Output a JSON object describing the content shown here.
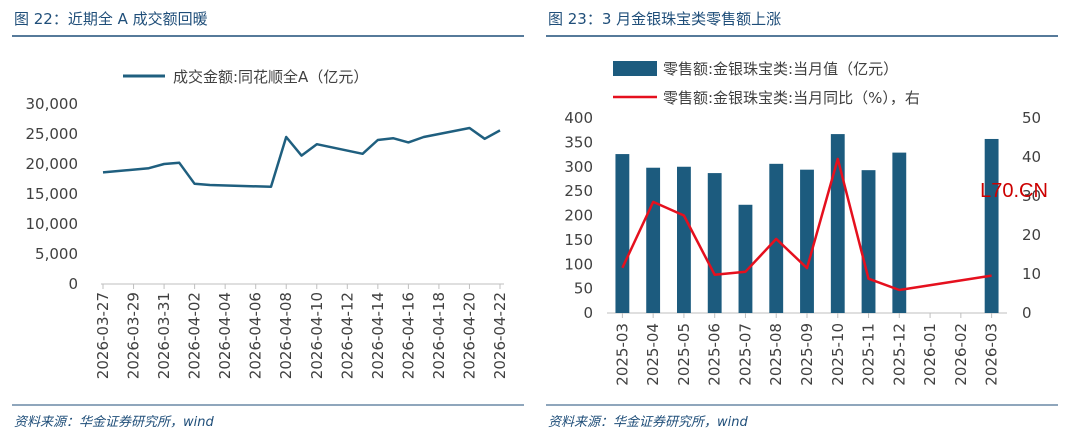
{
  "watermark": "L70.CN",
  "colors": {
    "title": "#1f4e79",
    "line_left": "#1f5f7f",
    "bar": "#1c5b7e",
    "line_right": "#e5101e",
    "axis": "#bfbfbf",
    "tick_text": "#404040"
  },
  "left": {
    "title": "图 22：近期全 A 成交额回暖",
    "source": "资料来源：华金证券研究所，wind"
  },
  "right": {
    "title": "图 23：3 月金银珠宝类零售额上涨",
    "source": "资料来源：华金证券研究所，wind"
  },
  "chart_data": [
    {
      "type": "line",
      "title": "",
      "legend": "top",
      "series": [
        {
          "name": "成交金额:同花顺全A（亿元）",
          "x": [
            "2026-03-27",
            "2026-03-30",
            "2026-03-31",
            "2026-04-01",
            "2026-04-02",
            "2026-04-03",
            "2026-04-07",
            "2026-04-08",
            "2026-04-09",
            "2026-04-10",
            "2026-04-13",
            "2026-04-14",
            "2026-04-15",
            "2026-04-16",
            "2026-04-17",
            "2026-04-20",
            "2026-04-21",
            "2026-04-22"
          ],
          "values": [
            18600,
            19300,
            20000,
            20200,
            16700,
            16500,
            16200,
            24500,
            21400,
            23300,
            21700,
            24000,
            24300,
            23600,
            24500,
            26000,
            24200,
            25600
          ]
        }
      ],
      "x_ticks": [
        "2026-03-27",
        "2026-03-29",
        "2026-03-31",
        "2026-04-02",
        "2026-04-04",
        "2026-04-06",
        "2026-04-08",
        "2026-04-10",
        "2026-04-12",
        "2026-04-14",
        "2026-04-16",
        "2026-04-18",
        "2026-04-20",
        "2026-04-22"
      ],
      "y_ticks": [
        "0",
        "5,000",
        "10,000",
        "15,000",
        "20,000",
        "25,000",
        "30,000"
      ],
      "ylim": [
        0,
        30000
      ],
      "xlim": [
        "2026-03-27",
        "2026-04-22"
      ],
      "grid": false
    },
    {
      "type": "bar",
      "title": "",
      "legend": "top",
      "categories": [
        "2025-03",
        "2025-04",
        "2025-05",
        "2025-06",
        "2025-07",
        "2025-08",
        "2025-09",
        "2025-10",
        "2025-11",
        "2025-12",
        "2026-01",
        "2026-02",
        "2026-03"
      ],
      "series": [
        {
          "name": "零售额:金银珠宝类:当月值（亿元）",
          "type": "bar",
          "axis": "left",
          "values": [
            326,
            298,
            300,
            287,
            222,
            306,
            294,
            367,
            293,
            329,
            null,
            null,
            357
          ]
        },
        {
          "name": "零售额:金银珠宝类:当月同比（%），右",
          "type": "line",
          "axis": "right",
          "values": [
            11.6,
            28.5,
            25.0,
            9.8,
            10.6,
            19.0,
            11.5,
            39.5,
            8.8,
            5.9,
            null,
            null,
            9.6
          ]
        }
      ],
      "y_ticks_left": [
        "0",
        "50",
        "100",
        "150",
        "200",
        "250",
        "300",
        "350",
        "400"
      ],
      "y_ticks_right": [
        "0",
        "10",
        "20",
        "30",
        "40",
        "50"
      ],
      "ylim_left": [
        0,
        400
      ],
      "ylim_right": [
        0,
        50
      ],
      "grid": false
    }
  ]
}
